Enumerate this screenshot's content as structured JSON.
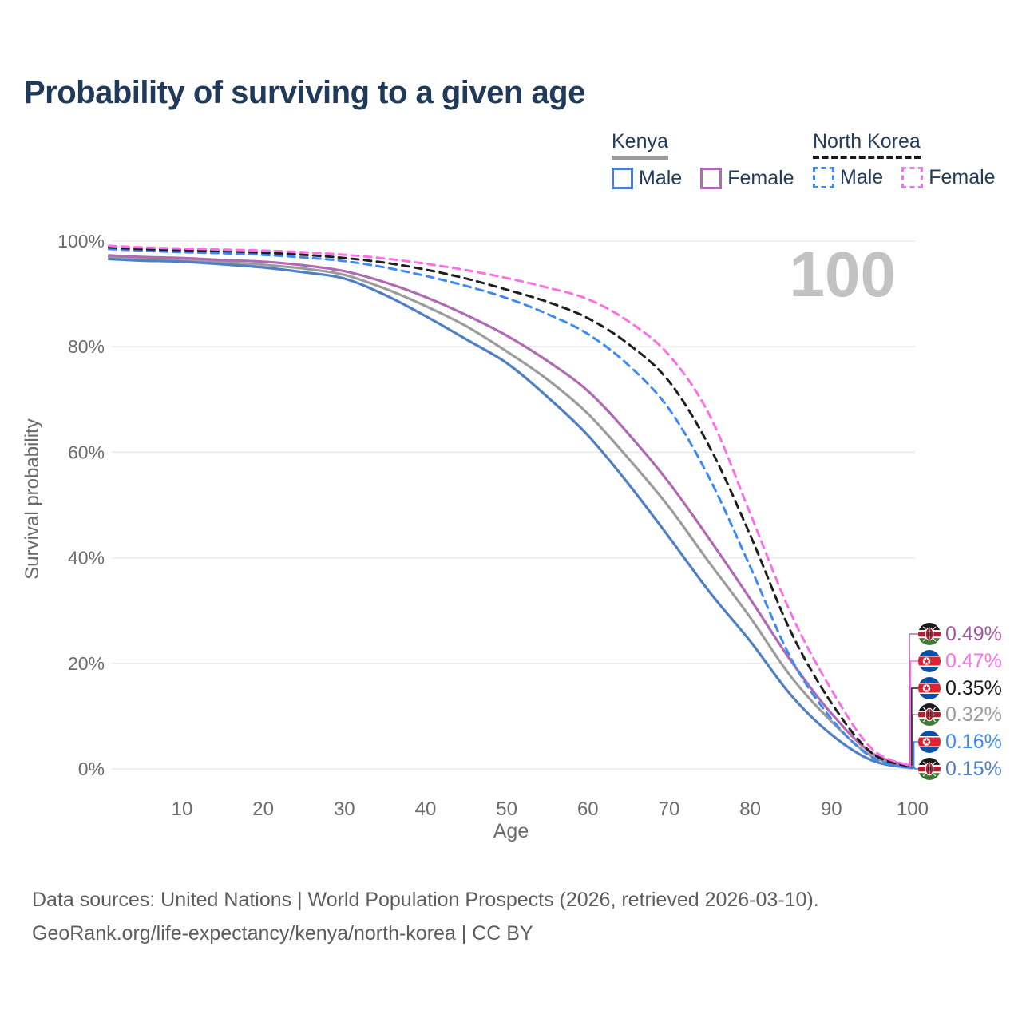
{
  "title": "Probability of surviving to a given age",
  "watermark": "100",
  "legend": {
    "groups": [
      {
        "label": "Kenya",
        "underline": {
          "style": "solid",
          "color": "#9b9b9b"
        },
        "items": [
          {
            "label": "Male",
            "color": "#4e7fc4",
            "dashed": false
          },
          {
            "label": "Female",
            "color": "#b06ab3",
            "dashed": false
          }
        ]
      },
      {
        "label": "North Korea",
        "underline": {
          "style": "dashed",
          "color": "#1a1a1a"
        },
        "items": [
          {
            "label": "Male",
            "color": "#3e8af4",
            "dashed": true
          },
          {
            "label": "Female",
            "color": "#fb6fe8",
            "dashed": true
          }
        ]
      }
    ]
  },
  "chart_data": {
    "type": "line",
    "title": "Probability of surviving to a given age",
    "xlabel": "Age",
    "ylabel": "Survival probability",
    "xlim": [
      1,
      100
    ],
    "ylim": [
      0,
      100
    ],
    "grid": "horizontal",
    "legend_position": "top-right",
    "x_ticks": [
      10,
      20,
      30,
      40,
      50,
      60,
      70,
      80,
      90,
      100
    ],
    "y_ticks": [
      {
        "v": 0,
        "label": "0%"
      },
      {
        "v": 20,
        "label": "20%"
      },
      {
        "v": 40,
        "label": "40%"
      },
      {
        "v": 60,
        "label": "60%"
      },
      {
        "v": 80,
        "label": "80%"
      },
      {
        "v": 100,
        "label": "100%"
      }
    ],
    "x": [
      1,
      5,
      10,
      15,
      20,
      25,
      30,
      35,
      40,
      45,
      50,
      55,
      60,
      65,
      70,
      75,
      80,
      85,
      90,
      95,
      100
    ],
    "series": [
      {
        "name": "Kenya Both sexes",
        "country": "Kenya",
        "sex": "Both sexes",
        "color": "#9c9c9c",
        "dashed": false,
        "values": [
          97.0,
          96.7,
          96.4,
          96.0,
          95.5,
          94.8,
          93.6,
          91.0,
          87.7,
          83.9,
          79.1,
          73.8,
          67.3,
          58.8,
          49.6,
          39.0,
          28.7,
          17.5,
          9.0,
          2.4,
          0.32
        ],
        "end_label": "0.32%",
        "end_label_color": "#9c9c9c",
        "flag": "kenya",
        "label_row": 3
      },
      {
        "name": "Kenya Male",
        "country": "Kenya",
        "sex": "Male",
        "color": "#4e7fc4",
        "dashed": false,
        "values": [
          96.6,
          96.3,
          96.1,
          95.6,
          95.0,
          94.1,
          92.9,
          89.8,
          85.8,
          81.4,
          76.9,
          70.5,
          63.2,
          54.0,
          43.9,
          33.5,
          24.2,
          14.0,
          6.5,
          1.6,
          0.15
        ],
        "end_label": "0.15%",
        "end_label_color": "#4e7fc4",
        "flag": "kenya",
        "label_row": 5
      },
      {
        "name": "Kenya Female",
        "country": "Kenya",
        "sex": "Female",
        "color": "#b06ab3",
        "dashed": false,
        "values": [
          97.3,
          97.0,
          96.8,
          96.4,
          96.1,
          95.4,
          94.3,
          92.2,
          89.4,
          86.0,
          82.1,
          77.3,
          71.6,
          63.5,
          54.2,
          43.5,
          32.2,
          20.5,
          10.5,
          3.0,
          0.49
        ],
        "end_label": "0.49%",
        "end_label_color": "#a0589d",
        "flag": "kenya",
        "label_row": 0
      },
      {
        "name": "North Korea Male",
        "country": "North Korea",
        "sex": "Male",
        "color": "#3e8af4",
        "dashed": true,
        "values": [
          98.5,
          98.2,
          97.9,
          97.7,
          97.4,
          96.9,
          96.2,
          95.0,
          93.4,
          91.5,
          89.2,
          86.2,
          82.4,
          76.5,
          68.2,
          55.0,
          38.3,
          21.0,
          9.5,
          2.2,
          0.16
        ],
        "end_label": "0.16%",
        "end_label_color": "#3e8af4",
        "flag": "north-korea",
        "label_row": 4
      },
      {
        "name": "North Korea Both sexes",
        "country": "North Korea",
        "sex": "Both sexes",
        "color": "#1f1f1f",
        "dashed": true,
        "values": [
          98.8,
          98.5,
          98.3,
          98.1,
          97.8,
          97.4,
          96.8,
          95.9,
          94.6,
          92.9,
          90.8,
          88.5,
          85.4,
          80.5,
          73.4,
          61.0,
          44.3,
          26.0,
          12.5,
          3.0,
          0.35
        ],
        "end_label": "0.35%",
        "end_label_color": "#161616",
        "flag": "north-korea",
        "label_row": 2
      },
      {
        "name": "North Korea Female",
        "country": "North Korea",
        "sex": "Female",
        "color": "#fb6fe8",
        "dashed": true,
        "values": [
          99.1,
          98.8,
          98.6,
          98.4,
          98.2,
          97.9,
          97.4,
          96.7,
          95.7,
          94.5,
          93.0,
          91.2,
          89.0,
          84.8,
          78.4,
          67.0,
          48.4,
          29.5,
          15.0,
          3.8,
          0.47
        ],
        "end_label": "0.47%",
        "end_label_color": "#fb6fe8",
        "flag": "north-korea",
        "label_row": 1
      }
    ]
  },
  "footer": {
    "line1": "Data sources: United Nations | World Population Prospects (2026, retrieved 2026-03-10).",
    "line2": "GeoRank.org/life-expectancy/kenya/north-korea | CC BY"
  }
}
